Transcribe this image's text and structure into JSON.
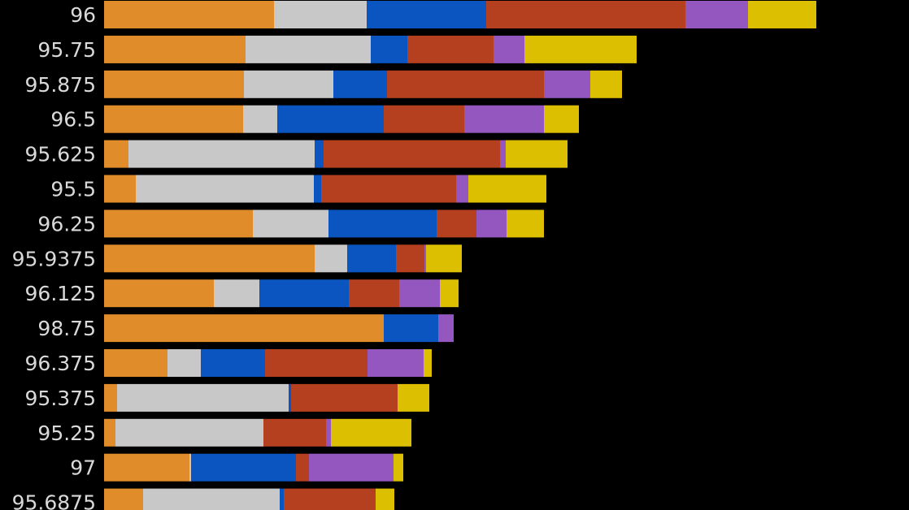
{
  "chart_data": {
    "type": "bar",
    "orientation": "horizontal",
    "stacked": true,
    "background": "#000000",
    "categories": [
      "96",
      "95.75",
      "95.875",
      "96.5",
      "95.625",
      "95.5",
      "96.25",
      "95.9375",
      "96.125",
      "98.75",
      "96.375",
      "95.375",
      "95.25",
      "97",
      "95.6875"
    ],
    "series": [
      {
        "color": "#e08c2a",
        "values": [
          209,
          174,
          172,
          171,
          30,
          39,
          183,
          259,
          135,
          344,
          78,
          16,
          14,
          105,
          48
        ]
      },
      {
        "color": "#c8c8c8",
        "values": [
          114,
          154,
          110,
          42,
          229,
          219,
          93,
          40,
          56,
          0,
          41,
          211,
          182,
          2,
          168
        ]
      },
      {
        "color": "#0a55c0",
        "values": [
          147,
          45,
          66,
          131,
          11,
          9,
          133,
          60,
          110,
          67,
          79,
          3,
          0,
          129,
          5
        ]
      },
      {
        "color": "#b5401f",
        "values": [
          245,
          106,
          193,
          99,
          217,
          166,
          49,
          35,
          62,
          0,
          126,
          131,
          77,
          16,
          113
        ]
      },
      {
        "color": "#9457c0",
        "values": [
          77,
          38,
          57,
          98,
          7,
          15,
          37,
          2,
          50,
          19,
          69,
          0,
          6,
          104,
          0
        ]
      },
      {
        "color": "#dcbf00",
        "values": [
          84,
          138,
          39,
          43,
          76,
          96,
          46,
          44,
          23,
          0,
          10,
          39,
          99,
          12,
          23
        ]
      }
    ]
  }
}
